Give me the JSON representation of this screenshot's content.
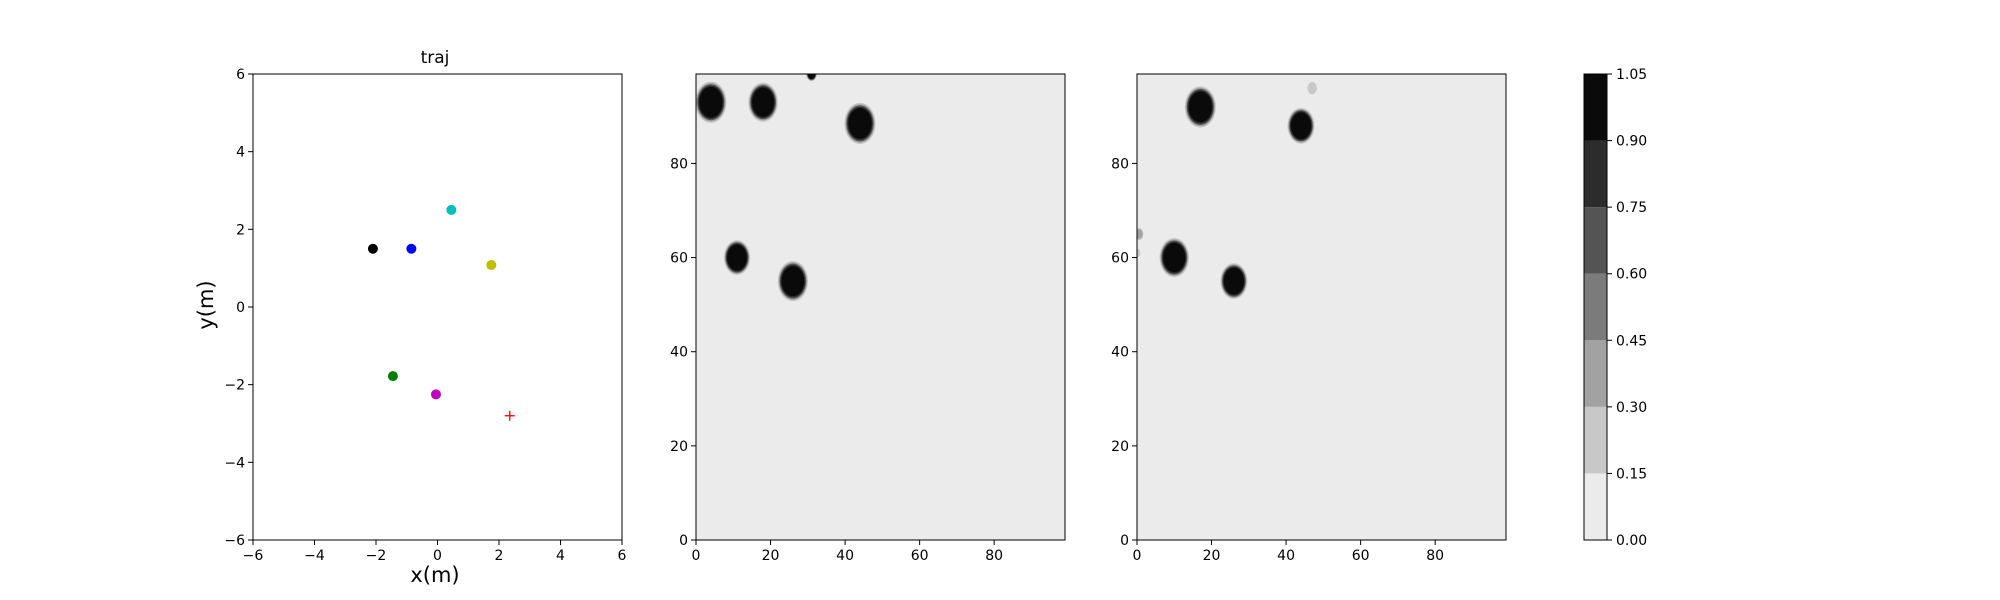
{
  "chart_data": [
    {
      "type": "scatter",
      "title": "traj",
      "xlabel": "x(m)",
      "ylabel": "y(m)",
      "xlim": [
        -6,
        6
      ],
      "ylim": [
        -6,
        6
      ],
      "xticks": [
        -6,
        -4,
        -2,
        0,
        2,
        4,
        6
      ],
      "yticks": [
        -6,
        -4,
        -2,
        0,
        2,
        4,
        6
      ],
      "grid": false,
      "points": [
        {
          "x": -2.1,
          "y": 1.5,
          "color": "#000000",
          "marker": "dot"
        },
        {
          "x": -0.85,
          "y": 1.5,
          "color": "#0000ff",
          "marker": "dot"
        },
        {
          "x": 0.45,
          "y": 2.5,
          "color": "#00bfbf",
          "marker": "dot"
        },
        {
          "x": 1.75,
          "y": 1.08,
          "color": "#bfbf00",
          "marker": "dot"
        },
        {
          "x": -1.45,
          "y": -1.78,
          "color": "#008000",
          "marker": "dot"
        },
        {
          "x": -0.05,
          "y": -2.25,
          "color": "#bf00bf",
          "marker": "dot"
        },
        {
          "x": 2.35,
          "y": -2.8,
          "color": "#ff0000",
          "marker": "plus"
        }
      ]
    },
    {
      "type": "heatmap",
      "title": "",
      "xlim": [
        0,
        99
      ],
      "ylim": [
        0,
        99
      ],
      "xticks": [
        0,
        20,
        40,
        60,
        80
      ],
      "yticks": [
        0,
        20,
        40,
        60,
        80
      ],
      "background_value": 0.05,
      "blobs": [
        {
          "x": 4,
          "y": 93,
          "r": 3.8,
          "value": 1.0
        },
        {
          "x": 18,
          "y": 93,
          "r": 3.6,
          "value": 1.0
        },
        {
          "x": 44,
          "y": 88.5,
          "r": 3.8,
          "value": 1.0
        },
        {
          "x": 11,
          "y": 60,
          "r": 3.2,
          "value": 1.0
        },
        {
          "x": 26,
          "y": 55,
          "r": 3.7,
          "value": 1.0
        },
        {
          "x": 31,
          "y": 99,
          "r": 1.3,
          "value": 0.9
        }
      ]
    },
    {
      "type": "heatmap",
      "title": "",
      "xlim": [
        0,
        99
      ],
      "ylim": [
        0,
        99
      ],
      "xticks": [
        0,
        20,
        40,
        60,
        80
      ],
      "yticks": [
        0,
        20,
        40,
        60,
        80
      ],
      "background_value": 0.05,
      "blobs": [
        {
          "x": 17,
          "y": 92,
          "r": 3.8,
          "value": 1.0
        },
        {
          "x": 44,
          "y": 88,
          "r": 3.3,
          "value": 1.0
        },
        {
          "x": 10,
          "y": 60,
          "r": 3.6,
          "value": 1.0
        },
        {
          "x": 26,
          "y": 55,
          "r": 3.3,
          "value": 1.0
        },
        {
          "x": 47,
          "y": 96,
          "r": 1.3,
          "value": 0.25
        },
        {
          "x": 0.5,
          "y": 65,
          "r": 1.2,
          "value": 0.3
        },
        {
          "x": 0,
          "y": 61,
          "r": 1.0,
          "value": 0.2
        }
      ]
    },
    {
      "type": "colorbar",
      "levels": [
        0.0,
        0.15,
        0.3,
        0.45,
        0.6,
        0.75,
        0.9,
        1.05
      ],
      "tick_labels": [
        "0.00",
        "0.15",
        "0.30",
        "0.45",
        "0.60",
        "0.75",
        "0.90",
        "1.05"
      ],
      "colors": [
        "#ebebeb",
        "#c8c8c8",
        "#a2a2a2",
        "#7b7b7b",
        "#545454",
        "#2c2c2c",
        "#0a0a0a"
      ]
    }
  ]
}
